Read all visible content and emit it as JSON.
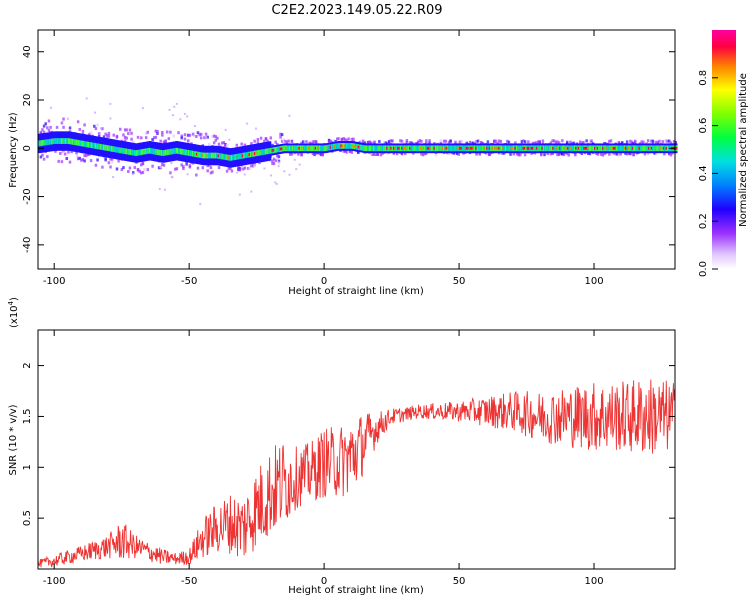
{
  "title": "C2E2.2023.149.05.22.R09",
  "chart_data": [
    {
      "type": "heatmap",
      "xlabel": "Height of straight line (km)",
      "ylabel": "Frequency (Hz)",
      "xlim": [
        -106,
        130
      ],
      "ylim": [
        -50,
        49
      ],
      "xticks": [
        -100,
        -50,
        0,
        50,
        100
      ],
      "yticks": [
        -40,
        -20,
        0,
        20,
        40
      ],
      "colorbar": {
        "label": "Normalized spectral amplitude",
        "range": [
          0.0,
          1.0
        ],
        "ticks": [
          0.0,
          0.2,
          0.4,
          0.6,
          0.8
        ]
      },
      "center_frequency_track": {
        "x": [
          -106,
          -100,
          -95,
          -90,
          -85,
          -80,
          -75,
          -70,
          -65,
          -60,
          -55,
          -50,
          -45,
          -40,
          -35,
          -30,
          -25,
          -20,
          -15,
          -10,
          -5,
          0,
          5,
          10,
          15,
          20,
          40,
          60,
          80,
          100,
          130
        ],
        "y": [
          2,
          3,
          3,
          2,
          1,
          0,
          -1,
          -2,
          -1,
          -2,
          -1,
          -2,
          -3,
          -3,
          -4,
          -3,
          -2,
          -1,
          0,
          0,
          0,
          0,
          1,
          1,
          0,
          0,
          0,
          0,
          0,
          0,
          0
        ]
      }
    },
    {
      "type": "line",
      "xlabel": "Height of straight line (km)",
      "ylabel": "SNR (10 * v/v)",
      "yunit_note": "(x10",
      "yunit_exp": "4",
      "yunit_close": ")",
      "xlim": [
        -106,
        130
      ],
      "ylim": [
        0,
        2.35
      ],
      "xticks": [
        -100,
        -50,
        0,
        50,
        100
      ],
      "yticks": [
        0.5,
        1.0,
        1.5,
        2.0
      ],
      "series": [
        {
          "color": "#ee3333",
          "envelope_x": [
            -106,
            -100,
            -90,
            -80,
            -75,
            -70,
            -60,
            -55,
            -50,
            -45,
            -40,
            -35,
            -30,
            -25,
            -20,
            -15,
            -10,
            -5,
            0,
            5,
            10,
            15,
            20,
            25,
            30,
            35,
            40,
            50,
            60,
            70,
            80,
            90,
            100,
            110,
            120,
            130
          ],
          "envelope_mean": [
            0.05,
            0.08,
            0.15,
            0.22,
            0.28,
            0.22,
            0.12,
            0.1,
            0.12,
            0.3,
            0.4,
            0.45,
            0.4,
            0.6,
            0.75,
            0.85,
            0.9,
            0.95,
            1.05,
            1.05,
            1.1,
            1.25,
            1.4,
            1.5,
            1.52,
            1.55,
            1.55,
            1.55,
            1.55,
            1.55,
            1.5,
            1.5,
            1.5,
            1.5,
            1.5,
            1.5
          ],
          "envelope_spread": [
            0.04,
            0.06,
            0.08,
            0.12,
            0.2,
            0.12,
            0.08,
            0.06,
            0.08,
            0.2,
            0.25,
            0.3,
            0.35,
            0.4,
            0.45,
            0.45,
            0.3,
            0.3,
            0.35,
            0.35,
            0.4,
            0.3,
            0.15,
            0.08,
            0.07,
            0.07,
            0.08,
            0.1,
            0.15,
            0.2,
            0.25,
            0.3,
            0.35,
            0.35,
            0.4,
            0.35
          ]
        }
      ]
    }
  ]
}
